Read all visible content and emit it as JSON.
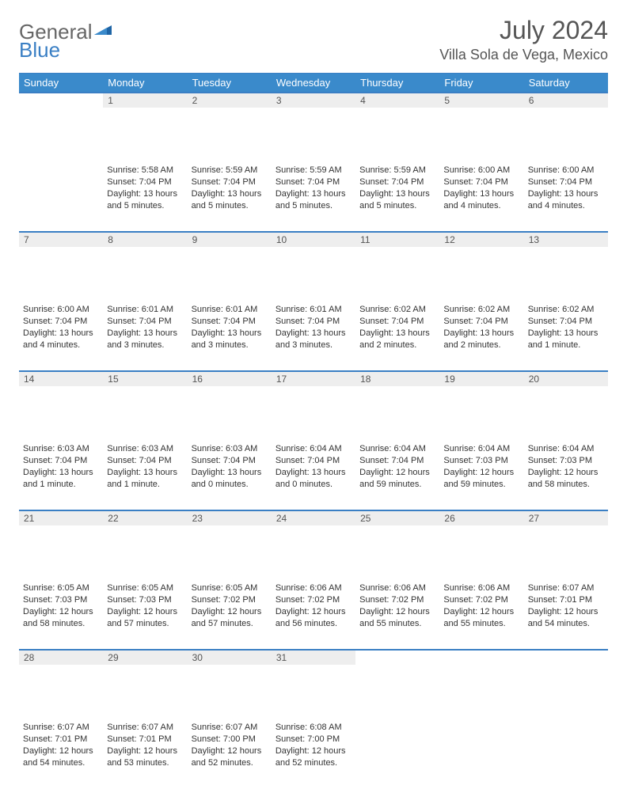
{
  "brand": {
    "part1": "General",
    "part2": "Blue"
  },
  "header": {
    "month": "July 2024",
    "location": "Villa Sola de Vega, Mexico"
  },
  "colors": {
    "accent": "#3a8acb",
    "header_text": "#555555",
    "daynum_bg": "#eeeeee"
  },
  "weekdays": [
    "Sunday",
    "Monday",
    "Tuesday",
    "Wednesday",
    "Thursday",
    "Friday",
    "Saturday"
  ],
  "weeks": [
    [
      {
        "n": "",
        "sr": "",
        "ss": "",
        "dl": ""
      },
      {
        "n": "1",
        "sr": "Sunrise: 5:58 AM",
        "ss": "Sunset: 7:04 PM",
        "dl": "Daylight: 13 hours and 5 minutes."
      },
      {
        "n": "2",
        "sr": "Sunrise: 5:59 AM",
        "ss": "Sunset: 7:04 PM",
        "dl": "Daylight: 13 hours and 5 minutes."
      },
      {
        "n": "3",
        "sr": "Sunrise: 5:59 AM",
        "ss": "Sunset: 7:04 PM",
        "dl": "Daylight: 13 hours and 5 minutes."
      },
      {
        "n": "4",
        "sr": "Sunrise: 5:59 AM",
        "ss": "Sunset: 7:04 PM",
        "dl": "Daylight: 13 hours and 5 minutes."
      },
      {
        "n": "5",
        "sr": "Sunrise: 6:00 AM",
        "ss": "Sunset: 7:04 PM",
        "dl": "Daylight: 13 hours and 4 minutes."
      },
      {
        "n": "6",
        "sr": "Sunrise: 6:00 AM",
        "ss": "Sunset: 7:04 PM",
        "dl": "Daylight: 13 hours and 4 minutes."
      }
    ],
    [
      {
        "n": "7",
        "sr": "Sunrise: 6:00 AM",
        "ss": "Sunset: 7:04 PM",
        "dl": "Daylight: 13 hours and 4 minutes."
      },
      {
        "n": "8",
        "sr": "Sunrise: 6:01 AM",
        "ss": "Sunset: 7:04 PM",
        "dl": "Daylight: 13 hours and 3 minutes."
      },
      {
        "n": "9",
        "sr": "Sunrise: 6:01 AM",
        "ss": "Sunset: 7:04 PM",
        "dl": "Daylight: 13 hours and 3 minutes."
      },
      {
        "n": "10",
        "sr": "Sunrise: 6:01 AM",
        "ss": "Sunset: 7:04 PM",
        "dl": "Daylight: 13 hours and 3 minutes."
      },
      {
        "n": "11",
        "sr": "Sunrise: 6:02 AM",
        "ss": "Sunset: 7:04 PM",
        "dl": "Daylight: 13 hours and 2 minutes."
      },
      {
        "n": "12",
        "sr": "Sunrise: 6:02 AM",
        "ss": "Sunset: 7:04 PM",
        "dl": "Daylight: 13 hours and 2 minutes."
      },
      {
        "n": "13",
        "sr": "Sunrise: 6:02 AM",
        "ss": "Sunset: 7:04 PM",
        "dl": "Daylight: 13 hours and 1 minute."
      }
    ],
    [
      {
        "n": "14",
        "sr": "Sunrise: 6:03 AM",
        "ss": "Sunset: 7:04 PM",
        "dl": "Daylight: 13 hours and 1 minute."
      },
      {
        "n": "15",
        "sr": "Sunrise: 6:03 AM",
        "ss": "Sunset: 7:04 PM",
        "dl": "Daylight: 13 hours and 1 minute."
      },
      {
        "n": "16",
        "sr": "Sunrise: 6:03 AM",
        "ss": "Sunset: 7:04 PM",
        "dl": "Daylight: 13 hours and 0 minutes."
      },
      {
        "n": "17",
        "sr": "Sunrise: 6:04 AM",
        "ss": "Sunset: 7:04 PM",
        "dl": "Daylight: 13 hours and 0 minutes."
      },
      {
        "n": "18",
        "sr": "Sunrise: 6:04 AM",
        "ss": "Sunset: 7:04 PM",
        "dl": "Daylight: 12 hours and 59 minutes."
      },
      {
        "n": "19",
        "sr": "Sunrise: 6:04 AM",
        "ss": "Sunset: 7:03 PM",
        "dl": "Daylight: 12 hours and 59 minutes."
      },
      {
        "n": "20",
        "sr": "Sunrise: 6:04 AM",
        "ss": "Sunset: 7:03 PM",
        "dl": "Daylight: 12 hours and 58 minutes."
      }
    ],
    [
      {
        "n": "21",
        "sr": "Sunrise: 6:05 AM",
        "ss": "Sunset: 7:03 PM",
        "dl": "Daylight: 12 hours and 58 minutes."
      },
      {
        "n": "22",
        "sr": "Sunrise: 6:05 AM",
        "ss": "Sunset: 7:03 PM",
        "dl": "Daylight: 12 hours and 57 minutes."
      },
      {
        "n": "23",
        "sr": "Sunrise: 6:05 AM",
        "ss": "Sunset: 7:02 PM",
        "dl": "Daylight: 12 hours and 57 minutes."
      },
      {
        "n": "24",
        "sr": "Sunrise: 6:06 AM",
        "ss": "Sunset: 7:02 PM",
        "dl": "Daylight: 12 hours and 56 minutes."
      },
      {
        "n": "25",
        "sr": "Sunrise: 6:06 AM",
        "ss": "Sunset: 7:02 PM",
        "dl": "Daylight: 12 hours and 55 minutes."
      },
      {
        "n": "26",
        "sr": "Sunrise: 6:06 AM",
        "ss": "Sunset: 7:02 PM",
        "dl": "Daylight: 12 hours and 55 minutes."
      },
      {
        "n": "27",
        "sr": "Sunrise: 6:07 AM",
        "ss": "Sunset: 7:01 PM",
        "dl": "Daylight: 12 hours and 54 minutes."
      }
    ],
    [
      {
        "n": "28",
        "sr": "Sunrise: 6:07 AM",
        "ss": "Sunset: 7:01 PM",
        "dl": "Daylight: 12 hours and 54 minutes."
      },
      {
        "n": "29",
        "sr": "Sunrise: 6:07 AM",
        "ss": "Sunset: 7:01 PM",
        "dl": "Daylight: 12 hours and 53 minutes."
      },
      {
        "n": "30",
        "sr": "Sunrise: 6:07 AM",
        "ss": "Sunset: 7:00 PM",
        "dl": "Daylight: 12 hours and 52 minutes."
      },
      {
        "n": "31",
        "sr": "Sunrise: 6:08 AM",
        "ss": "Sunset: 7:00 PM",
        "dl": "Daylight: 12 hours and 52 minutes."
      },
      {
        "n": "",
        "sr": "",
        "ss": "",
        "dl": ""
      },
      {
        "n": "",
        "sr": "",
        "ss": "",
        "dl": ""
      },
      {
        "n": "",
        "sr": "",
        "ss": "",
        "dl": ""
      }
    ]
  ]
}
